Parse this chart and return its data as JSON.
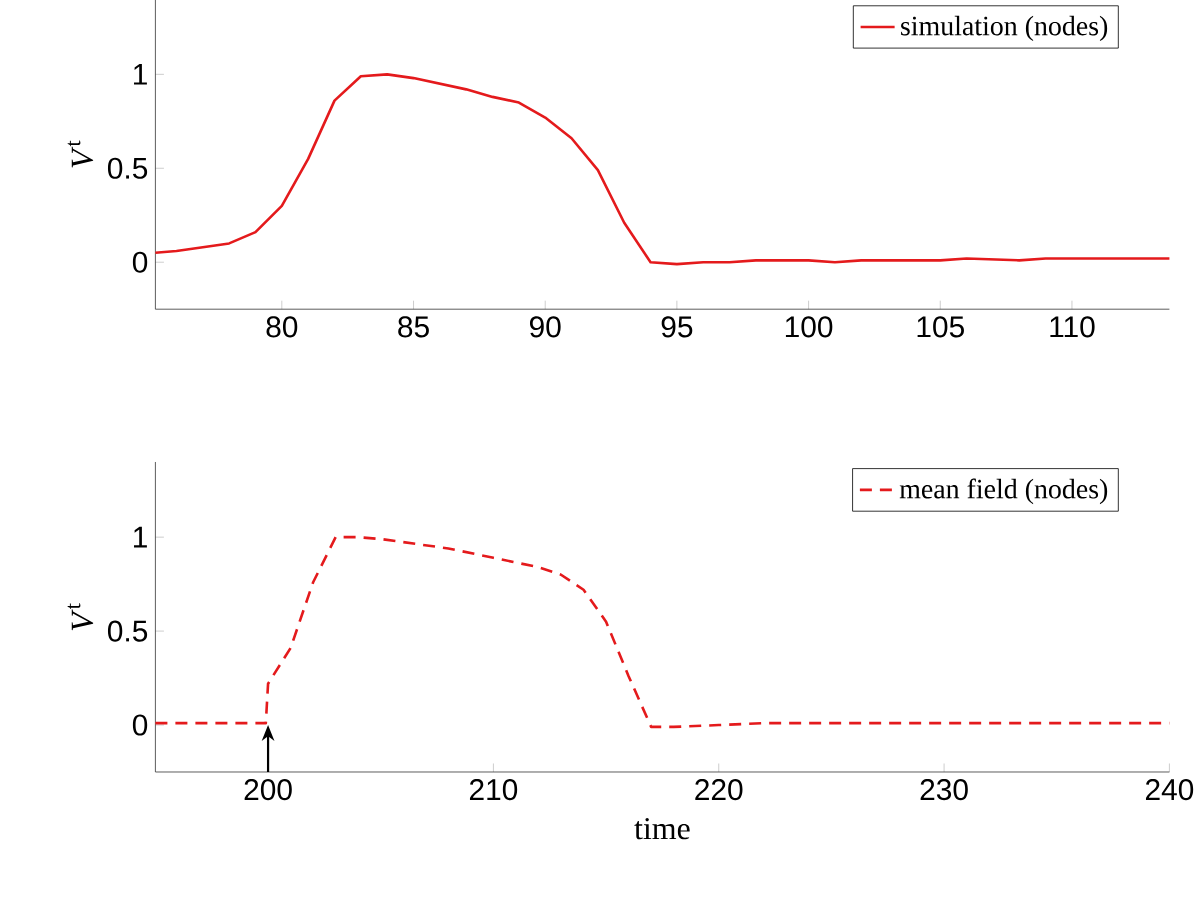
{
  "chart_data": [
    {
      "type": "line",
      "ylabel": "*V*$^{t}$",
      "legend": "top right",
      "line_style": "solid",
      "grid": false,
      "x": [
        75.2,
        76,
        77,
        78,
        79,
        80,
        81,
        82,
        83,
        84,
        85,
        86,
        87,
        88,
        89,
        90,
        91,
        92,
        93,
        94,
        95,
        96,
        97,
        98,
        100,
        101,
        102,
        104,
        105,
        106,
        108,
        109,
        110,
        112,
        113.7
      ],
      "series": [
        {
          "name": "simulation (nodes)",
          "color": "#e41a1c",
          "values": [
            0.05,
            0.06,
            0.08,
            0.1,
            0.16,
            0.3,
            0.55,
            0.86,
            0.99,
            1.0,
            0.98,
            0.95,
            0.92,
            0.88,
            0.85,
            0.77,
            0.66,
            0.49,
            0.21,
            0.0,
            -0.01,
            0.0,
            0.0,
            0.01,
            0.01,
            0.0,
            0.01,
            0.01,
            0.01,
            0.02,
            0.01,
            0.02,
            0.02,
            0.02,
            0.02
          ]
        }
      ],
      "xlim": [
        75.2,
        113.7
      ],
      "xticks": [
        80,
        85,
        90,
        95,
        100,
        105,
        110
      ],
      "ylim": [
        -0.25,
        1.4
      ],
      "yticks": [
        0,
        0.5,
        1
      ]
    },
    {
      "type": "line",
      "ylabel": "*V*$^{t}$",
      "xlabel": "time",
      "legend": "top right",
      "line_style": "dashed",
      "grid": false,
      "x": [
        195,
        199.9,
        200,
        201,
        202,
        203,
        204,
        205,
        208,
        210,
        212,
        213,
        214,
        215,
        216,
        217,
        218,
        220,
        222,
        240
      ],
      "series": [
        {
          "name": "mean field (nodes)",
          "color": "#e41a1c",
          "values": [
            0.01,
            0.01,
            0.22,
            0.41,
            0.76,
            1.0,
            1.0,
            0.99,
            0.94,
            0.89,
            0.84,
            0.8,
            0.72,
            0.55,
            0.26,
            -0.01,
            -0.01,
            0.0,
            0.01,
            0.01
          ]
        }
      ],
      "xlim": [
        195,
        240
      ],
      "xticks": [
        200,
        210,
        220,
        230,
        240
      ],
      "ylim": [
        -0.25,
        1.4
      ],
      "yticks": [
        0,
        0.5,
        1
      ]
    }
  ]
}
